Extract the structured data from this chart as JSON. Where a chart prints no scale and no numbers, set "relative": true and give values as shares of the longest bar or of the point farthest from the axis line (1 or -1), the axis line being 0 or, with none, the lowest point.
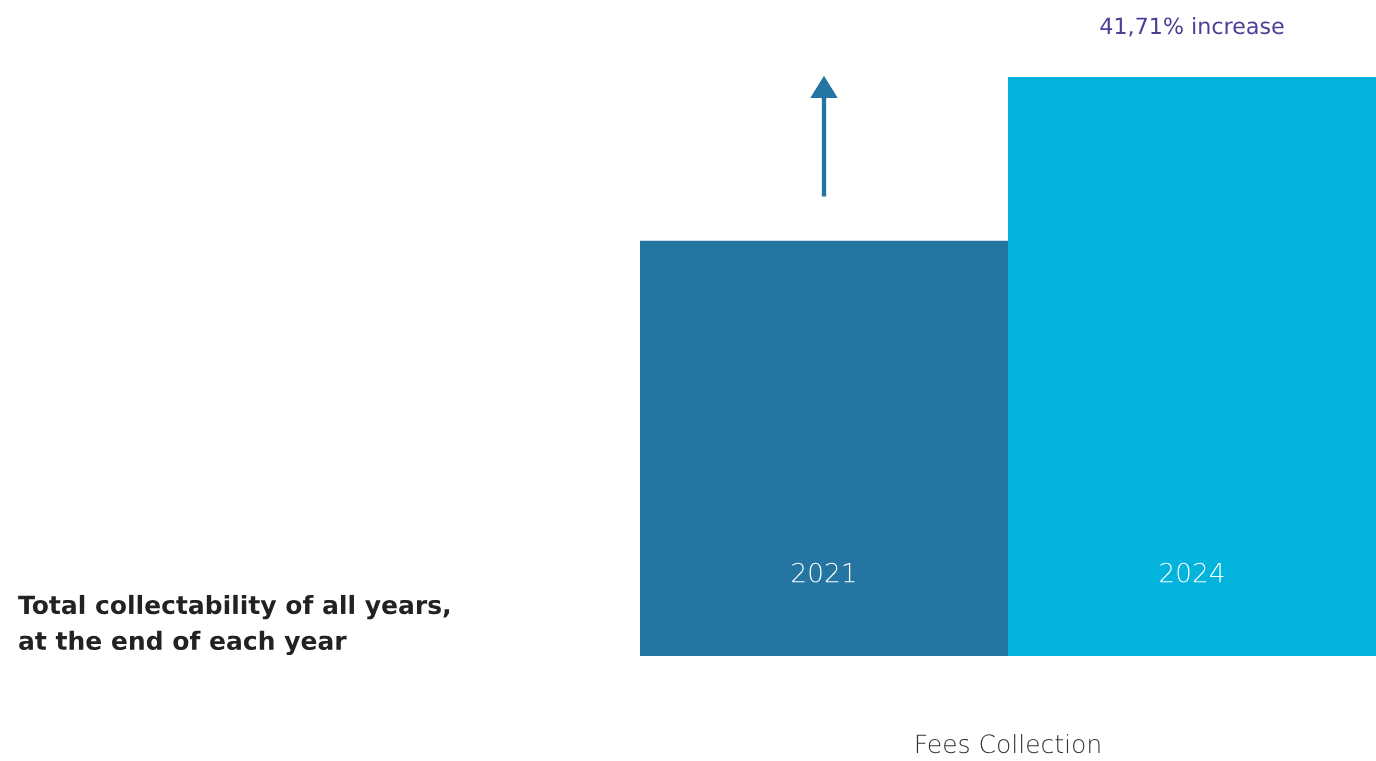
{
  "chart_data": {
    "type": "bar",
    "relative": true,
    "title": "Total collectability of all years,\nat the end of each year",
    "xlabel": "Fees Collection",
    "categories": [
      "2021",
      "2024"
    ],
    "values": [
      0.717,
      1
    ],
    "colors": [
      "#2475a2",
      "#02b3dc"
    ],
    "annotations": [
      "41,71% increase"
    ]
  }
}
